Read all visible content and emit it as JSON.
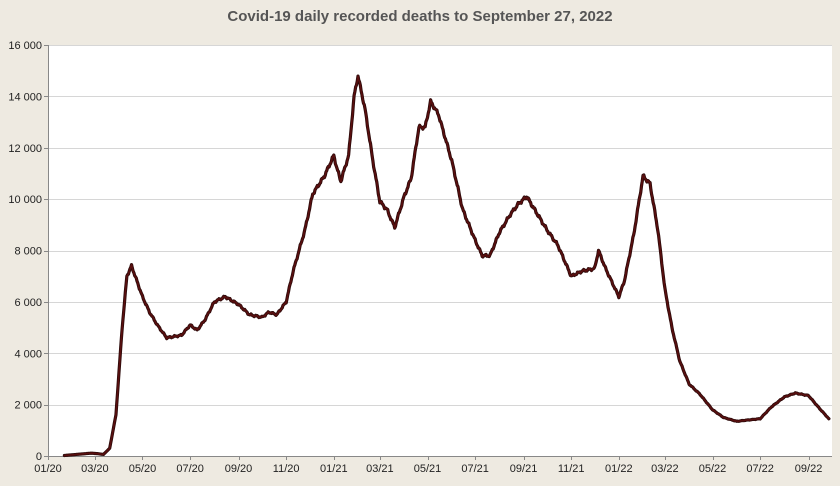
{
  "chart_data": {
    "type": "line",
    "title": "Covid-19 daily recorded deaths to September 27, 2022",
    "xlabel": "",
    "ylabel": "",
    "ylim": [
      0,
      16000
    ],
    "yticks": [
      0,
      2000,
      4000,
      6000,
      8000,
      10000,
      12000,
      14000,
      16000
    ],
    "ytick_labels": [
      "0",
      "2 000",
      "4 000",
      "6 000",
      "8 000",
      "10 000",
      "12 000",
      "14 000",
      "16 000"
    ],
    "xticks": [
      "2020-01-01",
      "2020-03-01",
      "2020-05-01",
      "2020-07-01",
      "2020-09-01",
      "2020-11-01",
      "2021-01-01",
      "2021-03-01",
      "2021-05-01",
      "2021-07-01",
      "2021-09-01",
      "2021-11-01",
      "2022-01-01",
      "2022-03-01",
      "2022-05-01",
      "2022-07-01",
      "2022-09-01"
    ],
    "xtick_labels": [
      "01/20",
      "03/20",
      "05/20",
      "07/20",
      "09/20",
      "11/20",
      "01/21",
      "03/21",
      "05/21",
      "07/21",
      "09/21",
      "11/21",
      "01/22",
      "03/22",
      "05/22",
      "07/22",
      "09/22"
    ],
    "xlim": [
      "2020-01-01",
      "2022-10-01"
    ],
    "grid": "horizontal",
    "legend": "none",
    "line_color": "#5a0f0f",
    "series": [
      {
        "x": [
          "2020-01-22",
          "2020-02-10",
          "2020-02-25",
          "2020-03-05",
          "2020-03-12",
          "2020-03-20",
          "2020-03-28",
          "2020-04-05",
          "2020-04-11",
          "2020-04-17",
          "2020-04-24",
          "2020-05-01",
          "2020-05-10",
          "2020-05-20",
          "2020-06-01",
          "2020-06-10",
          "2020-06-20",
          "2020-07-01",
          "2020-07-10",
          "2020-07-20",
          "2020-08-01",
          "2020-08-15",
          "2020-09-01",
          "2020-09-15",
          "2020-10-01",
          "2020-10-10",
          "2020-10-20",
          "2020-11-01",
          "2020-11-10",
          "2020-11-25",
          "2020-12-05",
          "2020-12-20",
          "2021-01-01",
          "2021-01-05",
          "2021-01-10",
          "2021-01-20",
          "2021-01-27",
          "2021-02-01",
          "2021-02-10",
          "2021-02-20",
          "2021-03-01",
          "2021-03-10",
          "2021-03-20",
          "2021-04-01",
          "2021-04-10",
          "2021-04-20",
          "2021-04-28",
          "2021-05-05",
          "2021-05-15",
          "2021-06-01",
          "2021-06-15",
          "2021-07-01",
          "2021-07-10",
          "2021-07-20",
          "2021-08-01",
          "2021-08-15",
          "2021-08-25",
          "2021-09-05",
          "2021-09-15",
          "2021-10-01",
          "2021-10-15",
          "2021-11-01",
          "2021-11-15",
          "2021-12-01",
          "2021-12-06",
          "2021-12-15",
          "2022-01-01",
          "2022-01-08",
          "2022-01-20",
          "2022-02-01",
          "2022-02-10",
          "2022-02-20",
          "2022-03-01",
          "2022-03-10",
          "2022-03-20",
          "2022-04-01",
          "2022-04-15",
          "2022-05-01",
          "2022-05-15",
          "2022-06-01",
          "2022-06-15",
          "2022-07-01",
          "2022-07-15",
          "2022-08-01",
          "2022-08-15",
          "2022-09-01",
          "2022-09-15",
          "2022-09-27"
        ],
        "y": [
          20,
          70,
          110,
          90,
          60,
          300,
          1600,
          5000,
          7000,
          7400,
          6800,
          6200,
          5600,
          5100,
          4600,
          4650,
          4700,
          5100,
          4900,
          5300,
          6000,
          6200,
          5900,
          5500,
          5400,
          5600,
          5500,
          6000,
          7200,
          8800,
          10200,
          10900,
          11700,
          11200,
          10700,
          11700,
          14000,
          14800,
          13500,
          11500,
          9900,
          9600,
          8900,
          10100,
          10800,
          12800,
          12800,
          13800,
          13300,
          11500,
          9600,
          8400,
          7800,
          7800,
          8700,
          9400,
          9800,
          10100,
          9600,
          8800,
          8200,
          7000,
          7200,
          7300,
          8000,
          7300,
          6200,
          6800,
          8600,
          10900,
          10600,
          8800,
          6500,
          5000,
          3700,
          2800,
          2400,
          1800,
          1500,
          1350,
          1400,
          1450,
          1900,
          2300,
          2450,
          2350,
          1850,
          1450
        ]
      }
    ]
  }
}
